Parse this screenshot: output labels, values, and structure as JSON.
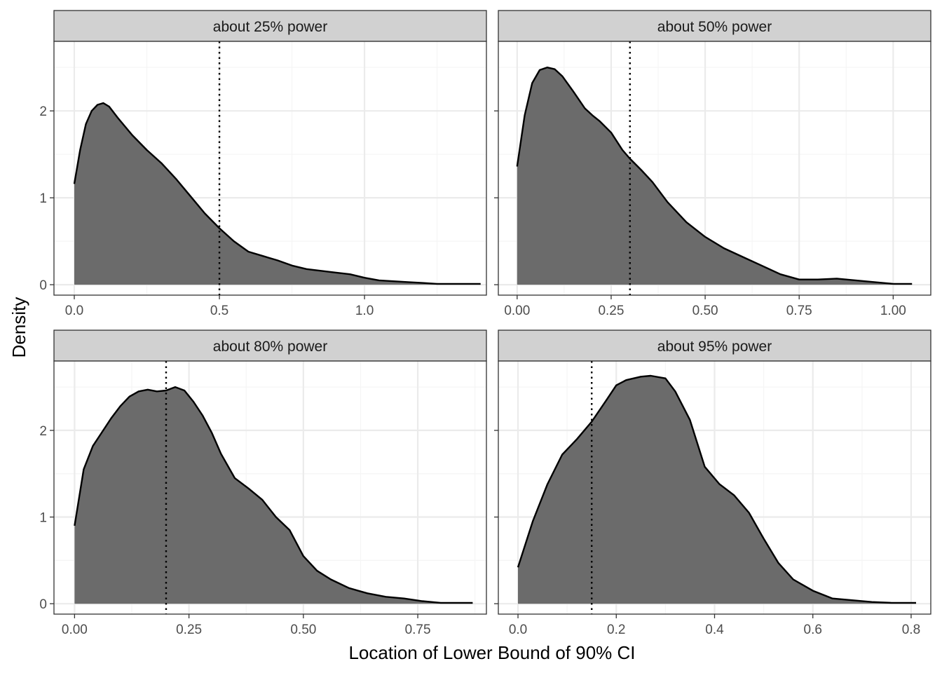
{
  "chart_data": {
    "type": "area",
    "xlabel": "Location of Lower Bound of 90% CI",
    "ylabel": "Density",
    "y_ticks": [
      0,
      1,
      2
    ],
    "ylim": [
      -0.12,
      2.8
    ],
    "grid": true,
    "legend": "none",
    "colors": {
      "fill": "#6b6b6b",
      "line": "#000000",
      "strip": "#d1d1d1",
      "border": "#333333",
      "grid_major": "#ebebeb",
      "grid_minor": "#f5f5f5"
    },
    "panels": [
      {
        "title": "about 25% power",
        "xlim": [
          -0.07,
          1.42
        ],
        "x_ticks": [
          0.0,
          0.5,
          1.0
        ],
        "x_tick_labels": [
          "0.0",
          "0.5",
          "1.0"
        ],
        "reference_line": 0.5,
        "x": [
          0.0,
          0.02,
          0.04,
          0.06,
          0.08,
          0.1,
          0.12,
          0.15,
          0.2,
          0.25,
          0.3,
          0.35,
          0.4,
          0.45,
          0.5,
          0.55,
          0.6,
          0.65,
          0.7,
          0.75,
          0.8,
          0.85,
          0.9,
          0.95,
          1.0,
          1.05,
          1.1,
          1.15,
          1.2,
          1.25,
          1.3,
          1.35,
          1.4
        ],
        "y": [
          1.16,
          1.55,
          1.85,
          2.0,
          2.07,
          2.09,
          2.05,
          1.92,
          1.72,
          1.55,
          1.4,
          1.22,
          1.02,
          0.82,
          0.65,
          0.5,
          0.38,
          0.33,
          0.28,
          0.22,
          0.18,
          0.16,
          0.14,
          0.12,
          0.08,
          0.05,
          0.04,
          0.03,
          0.02,
          0.01,
          0.01,
          0.01,
          0.01
        ]
      },
      {
        "title": "about 50% power",
        "xlim": [
          -0.05,
          1.1
        ],
        "x_ticks": [
          0.0,
          0.25,
          0.5,
          0.75,
          1.0
        ],
        "x_tick_labels": [
          "0.00",
          "0.25",
          "0.50",
          "0.75",
          "1.00"
        ],
        "reference_line": 0.3,
        "x": [
          0.0,
          0.02,
          0.04,
          0.06,
          0.08,
          0.1,
          0.12,
          0.15,
          0.18,
          0.2,
          0.22,
          0.25,
          0.28,
          0.3,
          0.33,
          0.36,
          0.4,
          0.45,
          0.5,
          0.55,
          0.6,
          0.65,
          0.7,
          0.75,
          0.8,
          0.85,
          0.9,
          0.95,
          1.0,
          1.05
        ],
        "y": [
          1.36,
          1.95,
          2.32,
          2.47,
          2.5,
          2.48,
          2.4,
          2.22,
          2.03,
          1.95,
          1.88,
          1.75,
          1.55,
          1.45,
          1.32,
          1.18,
          0.95,
          0.72,
          0.55,
          0.42,
          0.32,
          0.22,
          0.12,
          0.06,
          0.06,
          0.07,
          0.05,
          0.03,
          0.01,
          0.01
        ]
      },
      {
        "title": "about 80% power",
        "xlim": [
          -0.045,
          0.9
        ],
        "x_ticks": [
          0.0,
          0.25,
          0.5,
          0.75
        ],
        "x_tick_labels": [
          "0.00",
          "0.25",
          "0.50",
          "0.75"
        ],
        "reference_line": 0.2,
        "x": [
          0.0,
          0.02,
          0.04,
          0.06,
          0.08,
          0.1,
          0.12,
          0.14,
          0.16,
          0.18,
          0.2,
          0.22,
          0.24,
          0.26,
          0.28,
          0.3,
          0.32,
          0.35,
          0.38,
          0.41,
          0.44,
          0.47,
          0.5,
          0.53,
          0.56,
          0.6,
          0.64,
          0.68,
          0.72,
          0.76,
          0.8,
          0.84,
          0.87
        ],
        "y": [
          0.9,
          1.55,
          1.82,
          1.98,
          2.14,
          2.28,
          2.39,
          2.45,
          2.47,
          2.45,
          2.46,
          2.5,
          2.46,
          2.33,
          2.17,
          1.97,
          1.73,
          1.45,
          1.33,
          1.2,
          1.0,
          0.85,
          0.55,
          0.38,
          0.28,
          0.18,
          0.12,
          0.08,
          0.06,
          0.03,
          0.01,
          0.01,
          0.01
        ]
      },
      {
        "title": "about 95% power",
        "xlim": [
          -0.04,
          0.84
        ],
        "x_ticks": [
          0.0,
          0.2,
          0.4,
          0.6,
          0.8
        ],
        "x_tick_labels": [
          "0.0",
          "0.2",
          "0.4",
          "0.6",
          "0.8"
        ],
        "reference_line": 0.15,
        "x": [
          0.0,
          0.03,
          0.06,
          0.09,
          0.12,
          0.15,
          0.18,
          0.2,
          0.22,
          0.25,
          0.27,
          0.3,
          0.32,
          0.35,
          0.38,
          0.41,
          0.44,
          0.47,
          0.5,
          0.53,
          0.56,
          0.6,
          0.64,
          0.68,
          0.72,
          0.76,
          0.8,
          0.81
        ],
        "y": [
          0.42,
          0.95,
          1.38,
          1.72,
          1.9,
          2.1,
          2.35,
          2.52,
          2.58,
          2.62,
          2.63,
          2.6,
          2.45,
          2.12,
          1.58,
          1.38,
          1.25,
          1.05,
          0.75,
          0.47,
          0.28,
          0.15,
          0.06,
          0.04,
          0.02,
          0.01,
          0.01,
          0.01
        ]
      }
    ]
  }
}
